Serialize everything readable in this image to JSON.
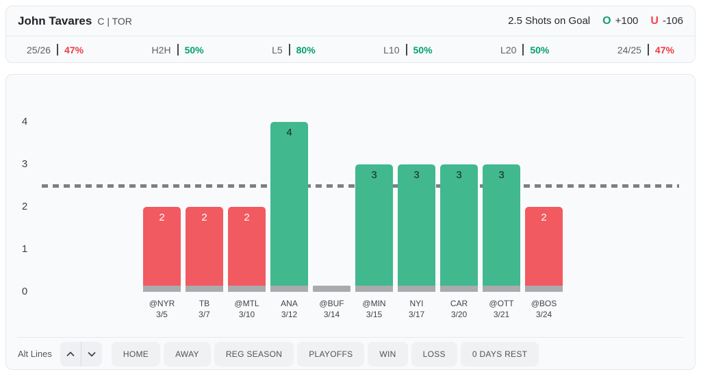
{
  "colors": {
    "over_green": "#00a169",
    "under_red": "#ee3b42",
    "bar_green": "#41b88e",
    "bar_red": "#f15a60",
    "bar_base_gray": "#a9abae",
    "dash_line_gray": "#7c8084"
  },
  "header": {
    "player_name": "John Tavares",
    "position_team": "C | TOR",
    "prop_line": "2.5 Shots on Goal",
    "over_label": "O",
    "over_odds": "+100",
    "under_label": "U",
    "under_odds": "-106"
  },
  "stats": [
    {
      "label": "25/26",
      "value": "47%",
      "status": "under"
    },
    {
      "label": "H2H",
      "value": "50%",
      "status": "over"
    },
    {
      "label": "L5",
      "value": "80%",
      "status": "over"
    },
    {
      "label": "L10",
      "value": "50%",
      "status": "over"
    },
    {
      "label": "L20",
      "value": "50%",
      "status": "over"
    },
    {
      "label": "24/25",
      "value": "47%",
      "status": "under"
    }
  ],
  "chart_data": {
    "type": "bar",
    "stat_name": "Shots on Goal",
    "line_value": 2.5,
    "y_ticks": [
      0,
      1,
      2,
      3,
      4
    ],
    "ylim": [
      0,
      4.6
    ],
    "categories": [
      "@NYR",
      "TB",
      "@MTL",
      "ANA",
      "@BUF",
      "@MIN",
      "NYI",
      "CAR",
      "@OTT",
      "@BOS"
    ],
    "dates": [
      "3/5",
      "3/7",
      "3/10",
      "3/12",
      "3/14",
      "3/15",
      "3/17",
      "3/20",
      "3/21",
      "3/24"
    ],
    "values": [
      2,
      2,
      2,
      4,
      0,
      3,
      3,
      3,
      3,
      2
    ],
    "grid": false,
    "legend": false
  },
  "toolbar": {
    "alt_lines_label": "Alt Lines",
    "filters": [
      "HOME",
      "AWAY",
      "REG SEASON",
      "PLAYOFFS",
      "WIN",
      "LOSS",
      "0 DAYS REST"
    ]
  }
}
